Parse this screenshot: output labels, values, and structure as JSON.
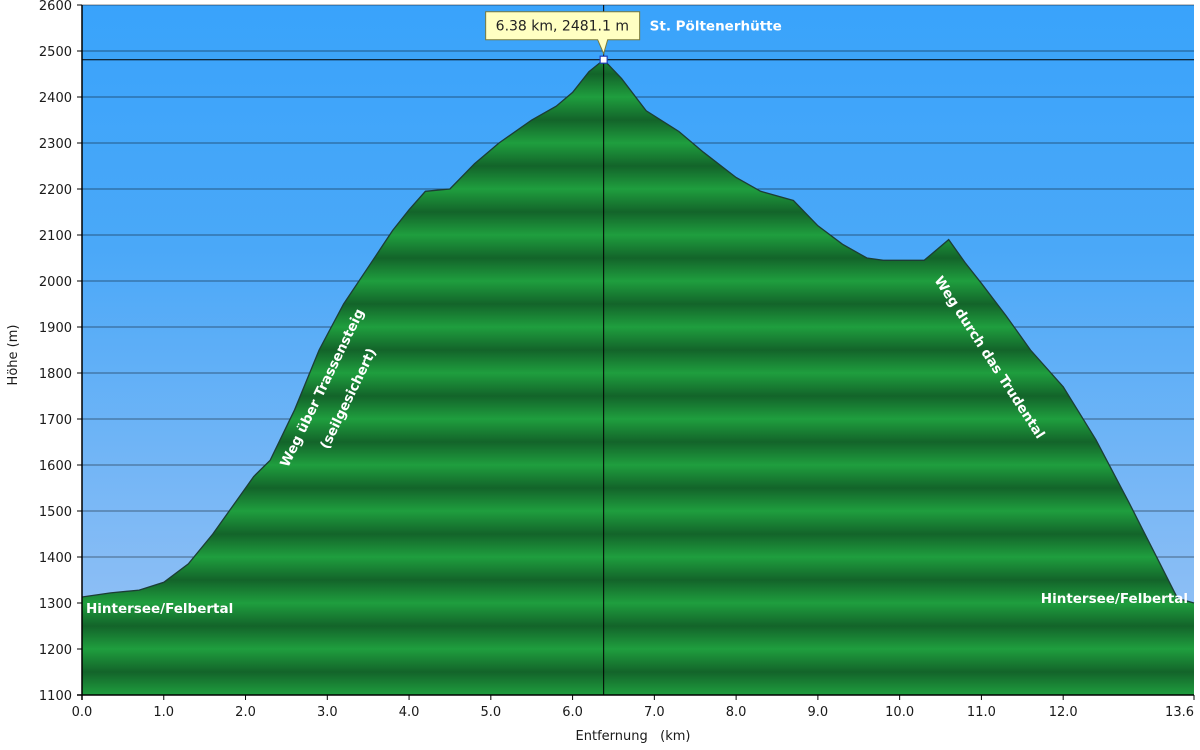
{
  "chart_data": {
    "type": "area",
    "xlabel": "Entfernung   (km)",
    "ylabel": "Höhe (m)",
    "xlim": [
      0,
      13.6
    ],
    "ylim": [
      1100,
      2600
    ],
    "xticks": [
      0.0,
      1.0,
      2.0,
      3.0,
      4.0,
      5.0,
      6.0,
      7.0,
      8.0,
      9.0,
      10.0,
      11.0,
      12.0,
      13.6
    ],
    "xtick_labels": [
      "0.0",
      "1.0",
      "2.0",
      "3.0",
      "4.0",
      "5.0",
      "6.0",
      "7.0",
      "8.0",
      "9.0",
      "10.0",
      "11.0",
      "12.0",
      "13.6"
    ],
    "yticks": [
      1100,
      1200,
      1300,
      1400,
      1500,
      1600,
      1700,
      1800,
      1900,
      2000,
      2100,
      2200,
      2300,
      2400,
      2500,
      2600
    ],
    "ytick_labels": [
      "1100",
      "1200",
      "1300",
      "1400",
      "1500",
      "1600",
      "1700",
      "1800",
      "1900",
      "2000",
      "2100",
      "2200",
      "2300",
      "2400",
      "2500",
      "2600"
    ],
    "grid": true,
    "series": [
      {
        "fill_color": "#1f9e3e",
        "x": [
          0.0,
          0.35,
          0.7,
          1.0,
          1.3,
          1.6,
          1.9,
          2.1,
          2.3,
          2.6,
          2.9,
          3.2,
          3.5,
          3.8,
          4.0,
          4.2,
          4.5,
          4.8,
          5.1,
          5.5,
          5.8,
          6.0,
          6.2,
          6.38,
          6.6,
          6.9,
          7.3,
          7.6,
          8.0,
          8.3,
          8.7,
          9.0,
          9.3,
          9.6,
          9.8,
          10.0,
          10.3,
          10.6,
          10.8,
          11.0,
          11.3,
          11.6,
          12.0,
          12.4,
          12.8,
          13.2,
          13.4,
          13.6
        ],
        "y": [
          1313,
          1322,
          1328,
          1345,
          1385,
          1450,
          1525,
          1575,
          1610,
          1720,
          1850,
          1950,
          2030,
          2110,
          2155,
          2195,
          2200,
          2255,
          2300,
          2350,
          2380,
          2410,
          2455,
          2481,
          2440,
          2370,
          2325,
          2280,
          2225,
          2195,
          2175,
          2120,
          2080,
          2050,
          2045,
          2045,
          2045,
          2090,
          2040,
          1995,
          1925,
          1850,
          1770,
          1655,
          1520,
          1380,
          1310,
          1300
        ]
      }
    ],
    "tooltip": {
      "x": 6.38,
      "y": 2481.1,
      "label": "6.38 km, 2481.1 m"
    },
    "annotations": [
      {
        "text": "St. Pöltenerhütte",
        "x": 6.38,
        "y": 2481.1
      },
      {
        "text": "Hintersee/Felbertal",
        "x": 0.0,
        "y": 1310
      },
      {
        "text": "Hintersee/Felbertal",
        "x": 13.6,
        "y": 1310
      },
      {
        "text": "Weg über Trassensteig",
        "x": 2.8,
        "y": 1820
      },
      {
        "text": "(seilgesichert)",
        "x": 3.3,
        "y": 1780
      },
      {
        "text": "Weg durch das Trudental",
        "x": 11.5,
        "y": 1840
      }
    ],
    "colors": {
      "sky_top": "#39a3fb",
      "sky_bottom": "#9ec4f4",
      "fill": "#1f9e3e",
      "fill_band": "#13642a",
      "outline": "#1c3d35",
      "grid": "#000000",
      "tooltip_bg": "#ffffc2"
    }
  }
}
